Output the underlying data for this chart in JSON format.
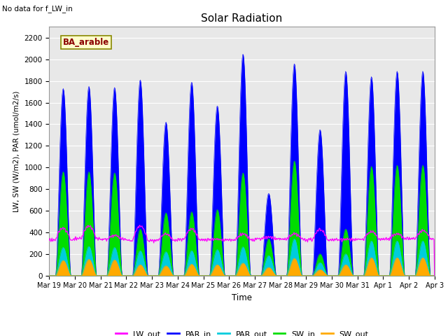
{
  "title": "Solar Radiation",
  "note": "No data for f_LW_in",
  "legend_label": "BA_arable",
  "xlabel": "Time",
  "ylabel": "LW, SW (W/m2), PAR (umol/m2/s)",
  "ylim": [
    0,
    2300
  ],
  "yticks": [
    0,
    200,
    400,
    600,
    800,
    1000,
    1200,
    1400,
    1600,
    1800,
    2000,
    2200
  ],
  "n_days": 15,
  "colors": {
    "LW_out": "#ff00ff",
    "PAR_in": "#0000ff",
    "PAR_out": "#00ccdd",
    "SW_in": "#00dd00",
    "SW_out": "#ffaa00"
  },
  "plot_bg": "#e8e8e8",
  "xtick_labels": [
    "Mar 19",
    "Mar 20",
    "Mar 21",
    "Mar 22",
    "Mar 23",
    "Mar 24",
    "Mar 25",
    "Mar 26",
    "Mar 27",
    "Mar 28",
    "Mar 29",
    "Mar 30",
    "Mar 31",
    "Apr 1",
    "Apr 2",
    "Apr 3"
  ],
  "PAR_in_peaks": [
    1730,
    1750,
    1740,
    1810,
    1420,
    1790,
    1570,
    2050,
    760,
    1960,
    1350,
    1890,
    1840,
    1890,
    1890
  ],
  "SW_in_peaks": [
    960,
    960,
    950,
    430,
    580,
    590,
    610,
    950,
    340,
    1060,
    200,
    430,
    1010,
    1020,
    1020
  ],
  "PAR_out_peaks": [
    260,
    270,
    260,
    230,
    220,
    230,
    240,
    265,
    185,
    340,
    120,
    200,
    320,
    320,
    320
  ],
  "SW_out_peaks": [
    140,
    150,
    145,
    100,
    90,
    105,
    100,
    115,
    75,
    160,
    55,
    100,
    165,
    165,
    165
  ],
  "LW_out_base": [
    330,
    340,
    335,
    325,
    325,
    335,
    330,
    330,
    340,
    335,
    330,
    330,
    335,
    340,
    340
  ],
  "LW_out_peak": [
    440,
    460,
    370,
    460,
    385,
    430,
    335,
    385,
    355,
    385,
    425,
    335,
    405,
    385,
    415
  ]
}
